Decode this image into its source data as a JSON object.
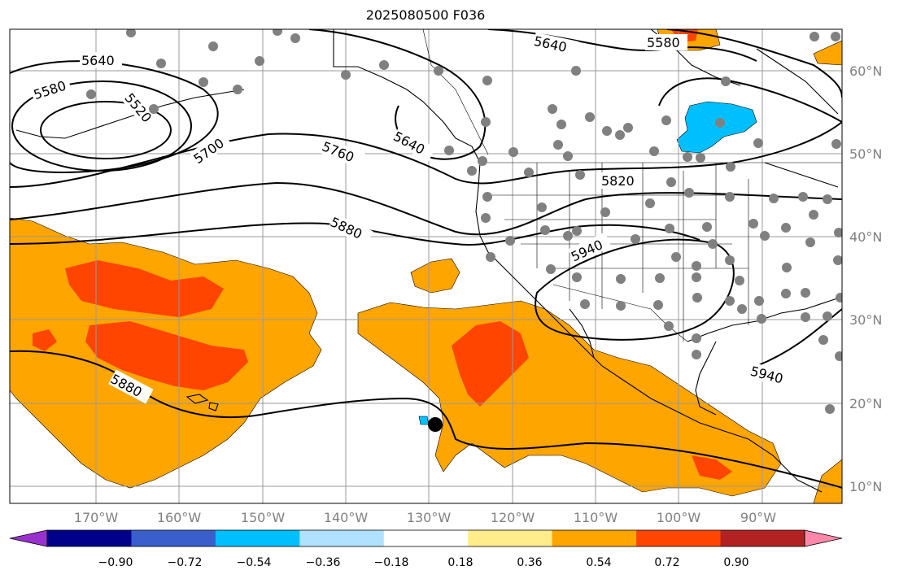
{
  "title": "2025080500 F036",
  "lon_ticks": [
    "170°W",
    "160°W",
    "150°W",
    "140°W",
    "130°W",
    "120°W",
    "110°W",
    "100°W",
    "90°W"
  ],
  "lat_ticks": [
    "60°N",
    "50°N",
    "40°N",
    "30°N",
    "20°N",
    "10°N"
  ],
  "colorbar": {
    "colors": [
      "#9932cc",
      "#00008b",
      "#3a5fcd",
      "#00bfff",
      "#b0e2ff",
      "#ffffff",
      "#ffec8b",
      "#ffa500",
      "#ff4500",
      "#b22222",
      "#ff88aa"
    ],
    "labels": [
      "−0.90",
      "−0.72",
      "−0.54",
      "−0.36",
      "−0.18",
      "0.18",
      "0.36",
      "0.54",
      "0.72",
      "0.90"
    ]
  },
  "contour_labels": [
    "5580",
    "5640",
    "5520",
    "5700",
    "5760",
    "5640",
    "5580",
    "5640",
    "5820",
    "5880",
    "5940",
    "5880",
    "5940"
  ],
  "colors": {
    "orange": "#ffa500",
    "red_orange": "#ff4500",
    "cyan": "#00bfff",
    "station": "#808080"
  }
}
